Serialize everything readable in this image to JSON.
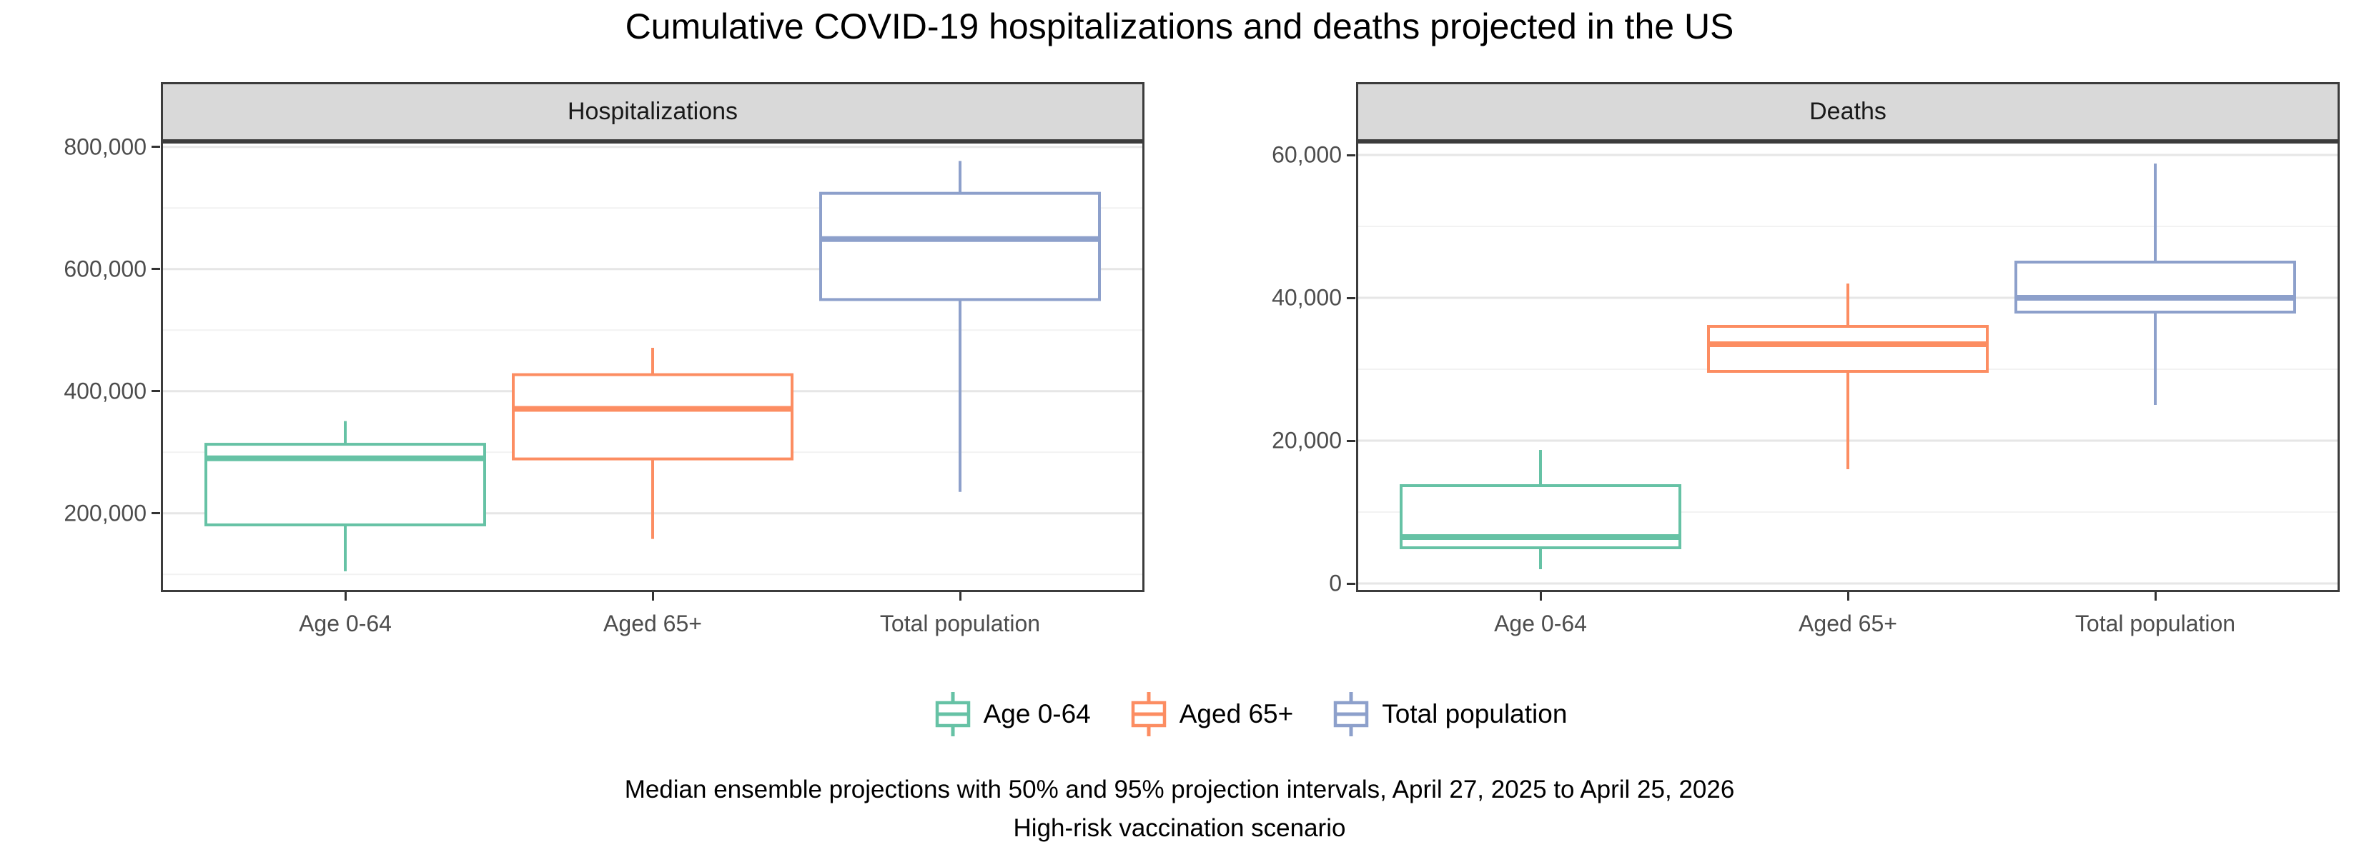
{
  "title": "Cumulative COVID-19 hospitalizations and deaths projected in the US",
  "caption": {
    "line1": "Median ensemble projections with 50% and 95% projection intervals, April 27, 2025 to April 25, 2026",
    "line2": "High-risk vaccination scenario"
  },
  "legend": {
    "position": "bottom",
    "items": [
      {
        "label": "Age 0-64",
        "color": "#66C2A5"
      },
      {
        "label": "Aged 65+",
        "color": "#FC8D62"
      },
      {
        "label": "Total population",
        "color": "#8DA0CB"
      }
    ]
  },
  "colors": {
    "green": "#66C2A5",
    "orange": "#FC8D62",
    "blue": "#8DA0CB",
    "strip_fill": "#D9D9D9",
    "panel_border": "#3C3C3C",
    "grid_major": "#E6E6E6",
    "grid_minor": "#F2F2F2",
    "axis_text": "#4D4D4D"
  },
  "chart_data": [
    {
      "type": "boxplot",
      "panel": "Hospitalizations",
      "categories": [
        "Age 0-64",
        "Aged 65+",
        "Total population"
      ],
      "ylim": [
        71000,
        809000
      ],
      "grid": "major+minor",
      "yticks": [
        {
          "value": 200000,
          "label": "200,000"
        },
        {
          "value": 400000,
          "label": "400,000"
        },
        {
          "value": 600000,
          "label": "600,000"
        },
        {
          "value": 800000,
          "label": "800,000"
        }
      ],
      "minor_ticks": [
        100000,
        300000,
        500000,
        700000
      ],
      "series": [
        {
          "name": "Age 0-64",
          "color": "#66C2A5",
          "whisker_low": 105000,
          "q1": 181000,
          "median": 290000,
          "q3": 313000,
          "whisker_high": 351000
        },
        {
          "name": "Aged 65+",
          "color": "#FC8D62",
          "whisker_low": 158000,
          "q1": 289000,
          "median": 371000,
          "q3": 427000,
          "whisker_high": 471000
        },
        {
          "name": "Total population",
          "color": "#8DA0CB",
          "whisker_low": 235000,
          "q1": 550000,
          "median": 649000,
          "q3": 724000,
          "whisker_high": 777000
        }
      ]
    },
    {
      "type": "boxplot",
      "panel": "Deaths",
      "categories": [
        "Age 0-64",
        "Aged 65+",
        "Total population"
      ],
      "ylim": [
        -1200,
        61900
      ],
      "grid": "major+minor",
      "yticks": [
        {
          "value": 0,
          "label": "0"
        },
        {
          "value": 20000,
          "label": "20,000"
        },
        {
          "value": 40000,
          "label": "40,000"
        },
        {
          "value": 60000,
          "label": "60,000"
        }
      ],
      "minor_ticks": [
        10000,
        30000,
        50000
      ],
      "series": [
        {
          "name": "Age 0-64",
          "color": "#66C2A5",
          "whisker_low": 2000,
          "q1": 5000,
          "median": 6500,
          "q3": 13700,
          "whisker_high": 18700
        },
        {
          "name": "Aged 65+",
          "color": "#FC8D62",
          "whisker_low": 16000,
          "q1": 29700,
          "median": 33500,
          "q3": 36000,
          "whisker_high": 42000
        },
        {
          "name": "Total population",
          "color": "#8DA0CB",
          "whisker_low": 25000,
          "q1": 38000,
          "median": 40000,
          "q3": 45000,
          "whisker_high": 58800
        }
      ]
    }
  ]
}
